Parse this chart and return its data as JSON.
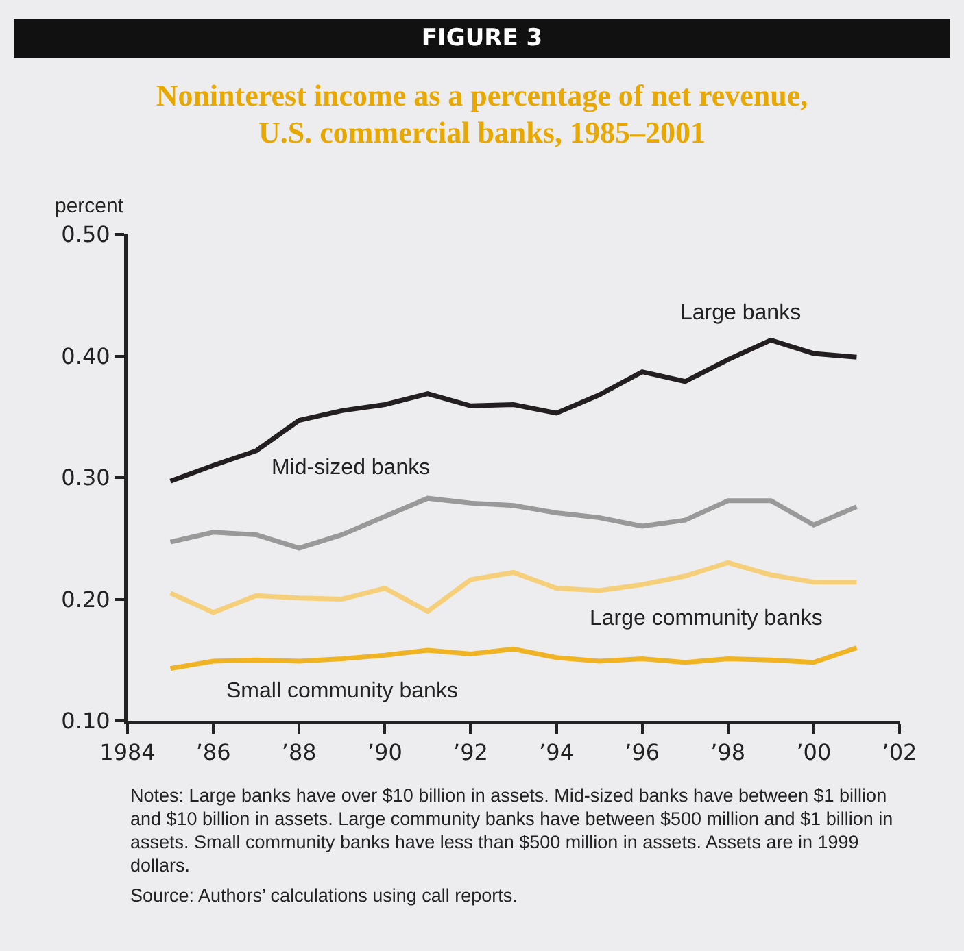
{
  "chart_data": {
    "type": "line",
    "title": "Noninterest income as a percentage of net revenue, U.S. commercial banks, 1985–2001",
    "ylabel": "percent",
    "annotations": [
      "FIGURE 3",
      "Notes: Large banks have over $10 billion in assets. Mid-sized banks have between $1 billion and $10 billion in assets. Large community banks have between $500 million and $1 billion in assets. Small community banks have less than $500 million in assets. Assets are in 1999 dollars.",
      "Source: Authors’ calculations using call reports."
    ],
    "x": [
      1985,
      1986,
      1987,
      1988,
      1989,
      1990,
      1991,
      1992,
      1993,
      1994,
      1995,
      1996,
      1997,
      1998,
      1999,
      2000,
      2001
    ],
    "series": [
      {
        "name": "Large banks",
        "color": "#231f20",
        "values": [
          0.297,
          0.31,
          0.322,
          0.347,
          0.355,
          0.36,
          0.369,
          0.359,
          0.36,
          0.353,
          0.368,
          0.387,
          0.379,
          0.397,
          0.413,
          0.402,
          0.399
        ]
      },
      {
        "name": "Mid-sized banks",
        "color": "#999999",
        "values": [
          0.247,
          0.255,
          0.253,
          0.242,
          0.253,
          0.268,
          0.283,
          0.279,
          0.277,
          0.271,
          0.267,
          0.26,
          0.265,
          0.281,
          0.281,
          0.261,
          0.276
        ]
      },
      {
        "name": "Large community banks",
        "color": "#f5cf7a",
        "values": [
          0.205,
          0.189,
          0.203,
          0.201,
          0.2,
          0.209,
          0.19,
          0.216,
          0.222,
          0.209,
          0.207,
          0.212,
          0.219,
          0.23,
          0.22,
          0.214,
          0.214
        ]
      },
      {
        "name": "Small community banks",
        "color": "#f0b323",
        "values": [
          0.143,
          0.149,
          0.15,
          0.149,
          0.151,
          0.154,
          0.158,
          0.155,
          0.159,
          0.152,
          0.149,
          0.151,
          0.148,
          0.151,
          0.15,
          0.148,
          0.16
        ]
      }
    ],
    "xlim": [
      1984,
      2002
    ],
    "ylim": [
      0.1,
      0.5
    ],
    "xticks": [
      1984,
      {
        "value": 1986,
        "label": "’86"
      },
      {
        "value": 1988,
        "label": "’88"
      },
      {
        "value": 1990,
        "label": "’90"
      },
      {
        "value": 1992,
        "label": "’92"
      },
      {
        "value": 1994,
        "label": "’94"
      },
      {
        "value": 1996,
        "label": "’96"
      },
      {
        "value": 1998,
        "label": "’98"
      },
      {
        "value": 2000,
        "label": "’00"
      },
      {
        "value": 2002,
        "label": "’02"
      }
    ],
    "yticks": [
      {
        "value": 0.1,
        "label": "0.10"
      },
      {
        "value": 0.2,
        "label": "0.20"
      },
      {
        "value": 0.3,
        "label": "0.30"
      },
      {
        "value": 0.4,
        "label": "0.40"
      },
      {
        "value": 0.5,
        "label": "0.50"
      }
    ],
    "grid": false,
    "legend": false,
    "marker": "none",
    "line_style": "solid"
  }
}
